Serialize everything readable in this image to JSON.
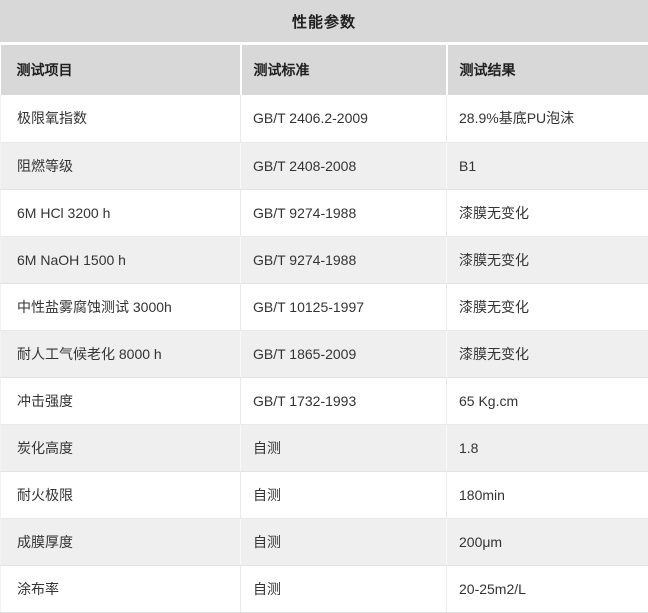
{
  "page": {
    "title": "性能参数"
  },
  "colors": {
    "band_bg": "#d8d8d8",
    "alt_row_bg": "#efefef",
    "text": "#333333"
  },
  "table": {
    "headers": [
      "测试项目",
      "测试标准",
      "测试结果"
    ],
    "rows": [
      {
        "item": "极限氧指数",
        "standard": "GB/T 2406.2-2009",
        "result": "28.9%基底PU泡沫"
      },
      {
        "item": "阻燃等级",
        "standard": "GB/T 2408-2008",
        "result": "B1"
      },
      {
        "item": "6M HCl 3200 h",
        "standard": "GB/T 9274-1988",
        "result": "漆膜无变化"
      },
      {
        "item": "6M NaOH 1500 h",
        "standard": "GB/T 9274-1988",
        "result": "漆膜无变化"
      },
      {
        "item": "中性盐雾腐蚀测试 3000h",
        "standard": "GB/T 10125-1997",
        "result": "漆膜无变化"
      },
      {
        "item": "耐人工气候老化 8000 h",
        "standard": "GB/T 1865-2009",
        "result": "漆膜无变化"
      },
      {
        "item": "冲击强度",
        "standard": "GB/T 1732-1993",
        "result": "65 Kg.cm"
      },
      {
        "item": "炭化高度",
        "standard": "自测",
        "result": "1.8"
      },
      {
        "item": "耐火极限",
        "standard": "自测",
        "result": "180min"
      },
      {
        "item": "成膜厚度",
        "standard": "自测",
        "result": "200μm"
      },
      {
        "item": "涂布率",
        "standard": "自测",
        "result": "20-25m2/L"
      }
    ]
  }
}
